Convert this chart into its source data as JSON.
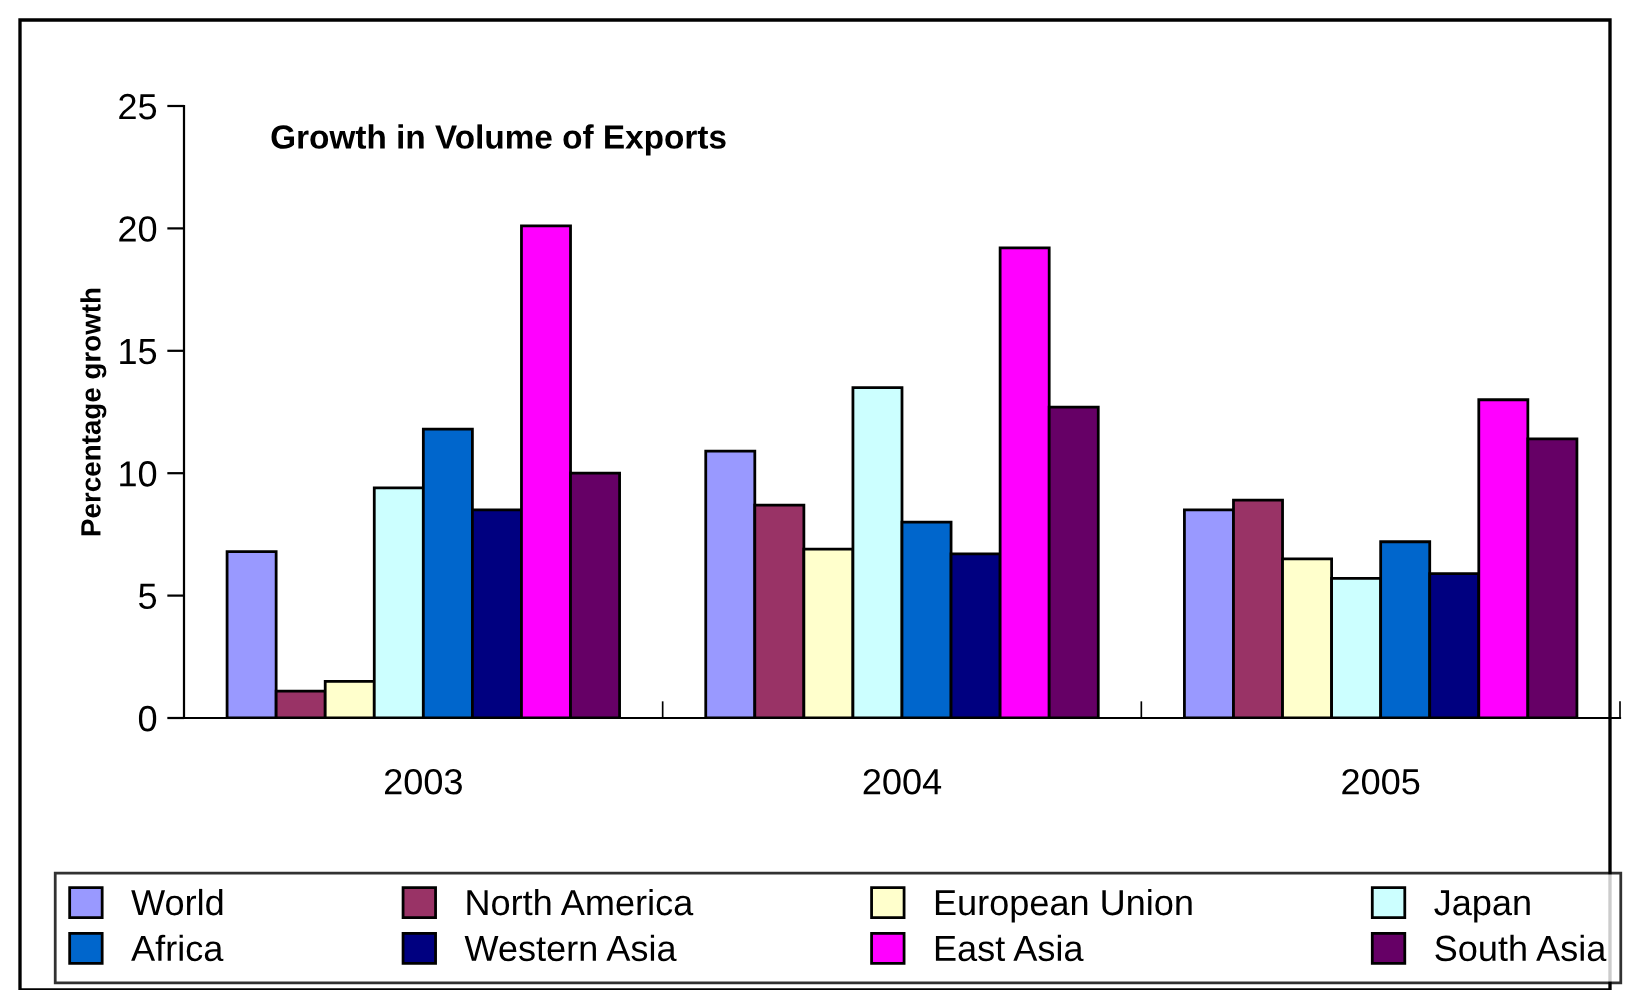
{
  "chart_data": {
    "type": "bar",
    "title": "Growth in Volume of Exports",
    "ylabel": "Percentage growth",
    "categories": [
      "2003",
      "2004",
      "2005"
    ],
    "series": [
      {
        "name": "World",
        "color": "#9999ff",
        "values": [
          6.8,
          10.9,
          8.5
        ]
      },
      {
        "name": "North America",
        "color": "#993366",
        "values": [
          1.1,
          8.7,
          8.9
        ]
      },
      {
        "name": "European Union",
        "color": "#ffffcc",
        "values": [
          1.5,
          6.9,
          6.5
        ]
      },
      {
        "name": "Japan",
        "color": "#ccffff",
        "values": [
          9.4,
          13.5,
          5.7
        ]
      },
      {
        "name": "Africa",
        "color": "#0066cc",
        "values": [
          11.8,
          8.0,
          7.2
        ]
      },
      {
        "name": "Western Asia",
        "color": "#000080",
        "values": [
          8.5,
          6.7,
          5.9
        ]
      },
      {
        "name": "East Asia",
        "color": "#ff00ff",
        "values": [
          20.1,
          19.2,
          13.0
        ]
      },
      {
        "name": "South Asia",
        "color": "#660066",
        "values": [
          10.0,
          12.7,
          11.4
        ]
      }
    ],
    "ylim": [
      0,
      25
    ],
    "yticks": [
      0,
      5,
      10,
      15,
      20,
      25
    ],
    "grid": false,
    "legend": "bottom"
  }
}
